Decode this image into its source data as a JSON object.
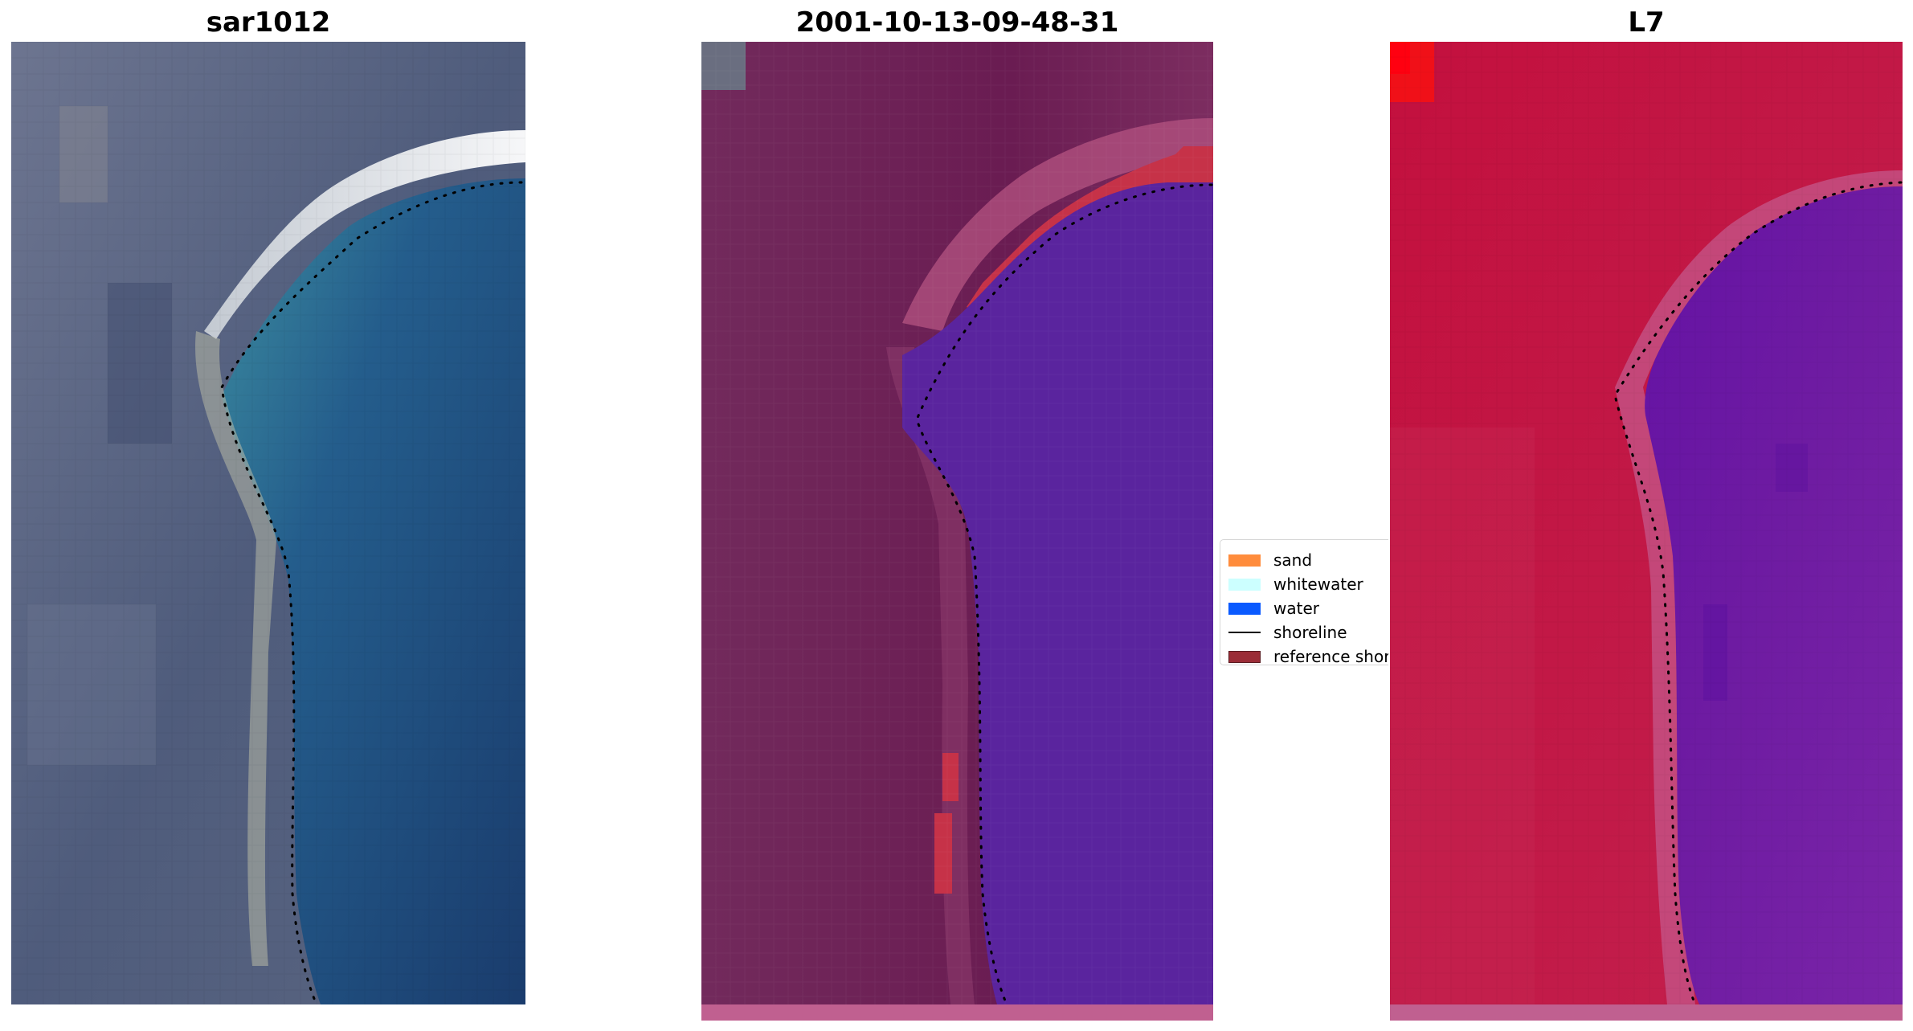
{
  "panels": [
    {
      "title": "sar1012"
    },
    {
      "title": "2001-10-13-09-48-31"
    },
    {
      "title": "L7"
    }
  ],
  "legend": {
    "items": [
      {
        "label": "sand",
        "kind": "patch",
        "color": "#ff8c3c"
      },
      {
        "label": "whitewater",
        "kind": "patch",
        "color": "#ccffff"
      },
      {
        "label": "water",
        "kind": "patch",
        "color": "#0a5aff"
      },
      {
        "label": "shoreline",
        "kind": "line",
        "color": "#000000"
      },
      {
        "label": "reference shoreline",
        "kind": "patch",
        "color": "#9b2d37"
      }
    ]
  },
  "colors": {
    "rgb_land": "#5f6a85",
    "rgb_water": "#1f4777",
    "rgb_shore_foam": "#e8eef5",
    "class_land": "#6e1e55",
    "class_water": "#5a249e",
    "class_reference_shoreline": "#c63248",
    "class_bottom_strip": "#c06090",
    "l7_land": "#c01848",
    "l7_water": "#6a1aa0",
    "l7_bright_corner": "#ff0010"
  }
}
